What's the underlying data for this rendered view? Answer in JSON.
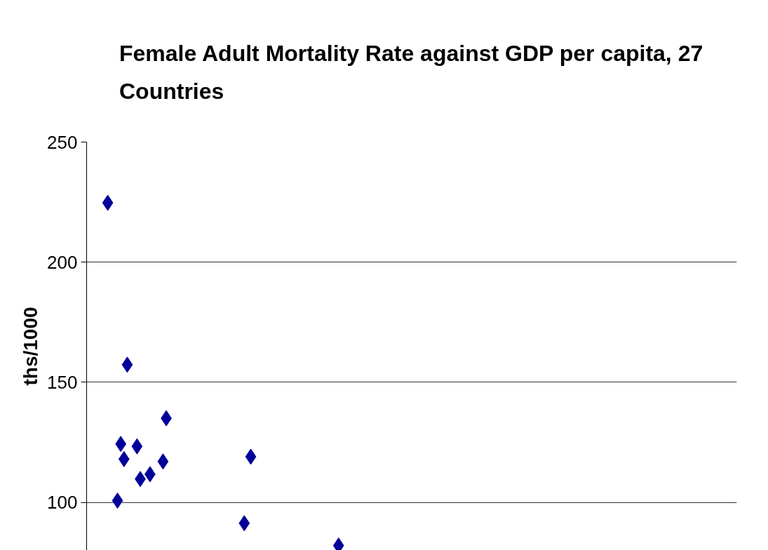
{
  "chart_data": {
    "type": "scatter",
    "title": "Female Adult Mortality Rate against GDP per capita, 27 Countries",
    "ylabel": "ths/1000",
    "categories": [
      null,
      null,
      null,
      null,
      null,
      null,
      null,
      null,
      null,
      null,
      null,
      null,
      null,
      null,
      null,
      null,
      null,
      null,
      null,
      null,
      null,
      null,
      null,
      null,
      null,
      null,
      null,
      null,
      null,
      null,
      null,
      null,
      null,
      null,
      null,
      null,
      null,
      null,
      null,
      null,
      null,
      null,
      null,
      null,
      null,
      null,
      null,
      null,
      null,
      null,
      null,
      null,
      null,
      null,
      null,
      null,
      null,
      null,
      null,
      null,
      null,
      null,
      null,
      null,
      null,
      null,
      null,
      null,
      null,
      null,
      null,
      null,
      null,
      null,
      null,
      null,
      null,
      null,
      null,
      null,
      null,
      null,
      null,
      null,
      null,
      null,
      null,
      null,
      null,
      null,
      null,
      null,
      null,
      null,
      null,
      null,
      null,
      null,
      null,
      null,
      null,
      null,
      null,
      null,
      null,
      null,
      null,
      null,
      null,
      null,
      null,
      null,
      null,
      null,
      null,
      null,
      null,
      null,
      null,
      null,
      null,
      null,
      null,
      null,
      null,
      null,
      null,
      null,
      null,
      null,
      null,
      null,
      null,
      null,
      null,
      null,
      null,
      null,
      null,
      null,
      null,
      null,
      null,
      null,
      null,
      null,
      null,
      null,
      null,
      null,
      null,
      null,
      null,
      null,
      null,
      null,
      null,
      null,
      null,
      null,
      null,
      null,
      null,
      null,
      null,
      null,
      null,
      null,
      null,
      null,
      null,
      null,
      null,
      null,
      null,
      null,
      null,
      null,
      null,
      null,
      null,
      null,
      null,
      null,
      null,
      null,
      null,
      null,
      null,
      null,
      null,
      null,
      null,
      null,
      null,
      null,
      null,
      null,
      null,
      null
    ],
    "series": [
      {
        "color": "#000099",
        "values": [
          null,
          null,
          null,
          null,
          null,
          null,
          224.7,
          null,
          null,
          100.7,
          124.3,
          118,
          157.3,
          null,
          null,
          123.3,
          109.7,
          null,
          null,
          111.7,
          null,
          null,
          null,
          117,
          135,
          null,
          null,
          null,
          null,
          null,
          null,
          null,
          null,
          null,
          null,
          null,
          null,
          null,
          null,
          null,
          null,
          null,
          null,
          null,
          null,
          null,
          null,
          null,
          91.3,
          null,
          119,
          null,
          null,
          null,
          null,
          null,
          null,
          null,
          null,
          null,
          null,
          null,
          null,
          null,
          null,
          null,
          null,
          null,
          null,
          null,
          null,
          null,
          null,
          null,
          null,
          null,
          null,
          82,
          null,
          null,
          null,
          null,
          null,
          null,
          null,
          null,
          null,
          null,
          null,
          null,
          null,
          null,
          null,
          null,
          null,
          null,
          null,
          null,
          null,
          null,
          null,
          null,
          null,
          null,
          null,
          null,
          null,
          null,
          null,
          null,
          null,
          null,
          null,
          null,
          null,
          null,
          null,
          null,
          null,
          null,
          null,
          null,
          null,
          null,
          null,
          null,
          null,
          null,
          null,
          null,
          null,
          null,
          null,
          null,
          null,
          null,
          null,
          null,
          null,
          null,
          null,
          null,
          null,
          null,
          null,
          null,
          null,
          null,
          null,
          null,
          null,
          null,
          null,
          null,
          null,
          null,
          null,
          null,
          null,
          null,
          null,
          null,
          null,
          null,
          null,
          null,
          null,
          null,
          null,
          null,
          null,
          null,
          null,
          null,
          null,
          null,
          null,
          null,
          null,
          null,
          null,
          null,
          null,
          null,
          null,
          null,
          null,
          null,
          null,
          null,
          null,
          null,
          null,
          null,
          null,
          null,
          null,
          null,
          null,
          null
        ]
      }
    ],
    "ylim": [
      80,
      250
    ],
    "yticks": [
      100,
      150,
      200,
      250
    ],
    "grid": "y",
    "marker": "diamond",
    "tick_labels": "y"
  }
}
